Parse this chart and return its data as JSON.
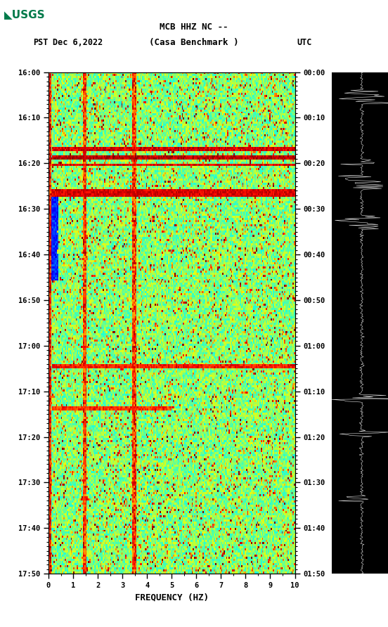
{
  "title_line1": "MCB HHZ NC --",
  "title_line2": "(Casa Benchmark )",
  "date_label": "Dec 6,2022",
  "left_tz": "PST",
  "right_tz": "UTC",
  "left_yticks": [
    "16:00",
    "16:10",
    "16:20",
    "16:30",
    "16:40",
    "16:50",
    "17:00",
    "17:10",
    "17:20",
    "17:30",
    "17:40",
    "17:50"
  ],
  "right_yticks": [
    "00:00",
    "00:10",
    "00:20",
    "00:30",
    "00:40",
    "00:50",
    "01:00",
    "01:10",
    "01:20",
    "01:30",
    "01:40",
    "01:50"
  ],
  "xticks": [
    0,
    1,
    2,
    3,
    4,
    5,
    6,
    7,
    8,
    9,
    10
  ],
  "xlabel": "FREQUENCY (HZ)",
  "freq_min": 0,
  "freq_max": 10,
  "n_time": 240,
  "n_freq": 200,
  "fig_bg": "#ffffff",
  "usgs_color": "#007a4a",
  "colormap": "jet",
  "seed": 42,
  "figsize": [
    5.52,
    8.92
  ],
  "dpi": 100
}
